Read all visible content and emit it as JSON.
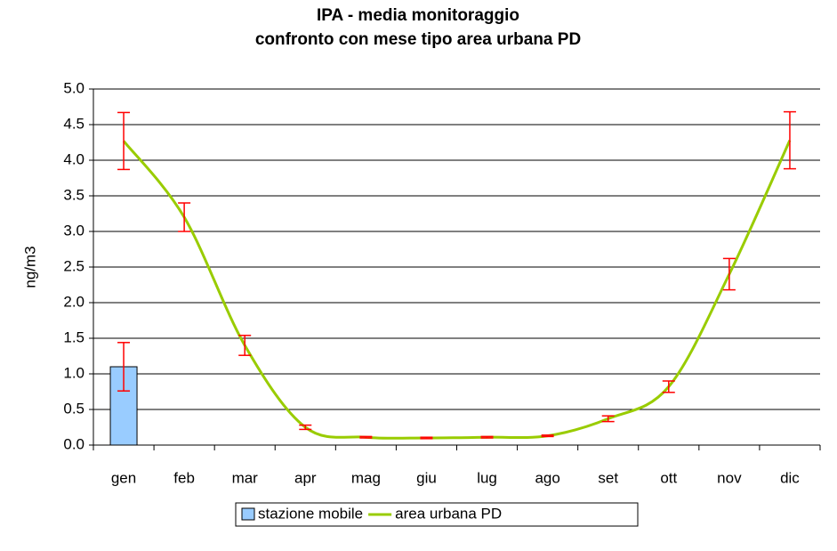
{
  "chart_data": {
    "type": "bar-line",
    "title": [
      "IPA -  media monitoraggio",
      "confronto con mese tipo area urbana PD"
    ],
    "y_label": "ng/m3",
    "categories": [
      "gen",
      "feb",
      "mar",
      "apr",
      "mag",
      "giu",
      "lug",
      "ago",
      "set",
      "ott",
      "nov",
      "dic"
    ],
    "ylim": [
      0,
      5
    ],
    "yticks": [
      {
        "value": 0,
        "label": "0.0"
      },
      {
        "value": 0.5,
        "label": "0.5"
      },
      {
        "value": 1,
        "label": "1.0"
      },
      {
        "value": 1.5,
        "label": "1.5"
      },
      {
        "value": 2,
        "label": "2.0"
      },
      {
        "value": 2.5,
        "label": "2.5"
      },
      {
        "value": 3,
        "label": "3.0"
      },
      {
        "value": 3.5,
        "label": "3.5"
      },
      {
        "value": 4,
        "label": "4.0"
      },
      {
        "value": 4.5,
        "label": "4.5"
      },
      {
        "value": 5,
        "label": "5.0"
      }
    ],
    "grid": true,
    "error_color": "#ff0000",
    "series": [
      {
        "name": "stazione mobile",
        "kind": "bar",
        "color": "#99ccff",
        "values": [
          1.1,
          0,
          0,
          0,
          0,
          0,
          0,
          0,
          0,
          0,
          0,
          0
        ],
        "errors": [
          0.34,
          null,
          null,
          null,
          null,
          null,
          null,
          null,
          null,
          null,
          null,
          null
        ]
      },
      {
        "name": "area urbana PD",
        "kind": "line",
        "color": "#99cc00",
        "values": [
          4.27,
          3.2,
          1.4,
          0.25,
          0.11,
          0.1,
          0.11,
          0.13,
          0.37,
          0.82,
          2.4,
          4.28
        ],
        "errors": [
          0.4,
          0.2,
          0.14,
          0.03,
          0.01,
          0.01,
          0.01,
          0.01,
          0.04,
          0.08,
          0.22,
          0.4
        ]
      }
    ],
    "legend": "bottom"
  }
}
